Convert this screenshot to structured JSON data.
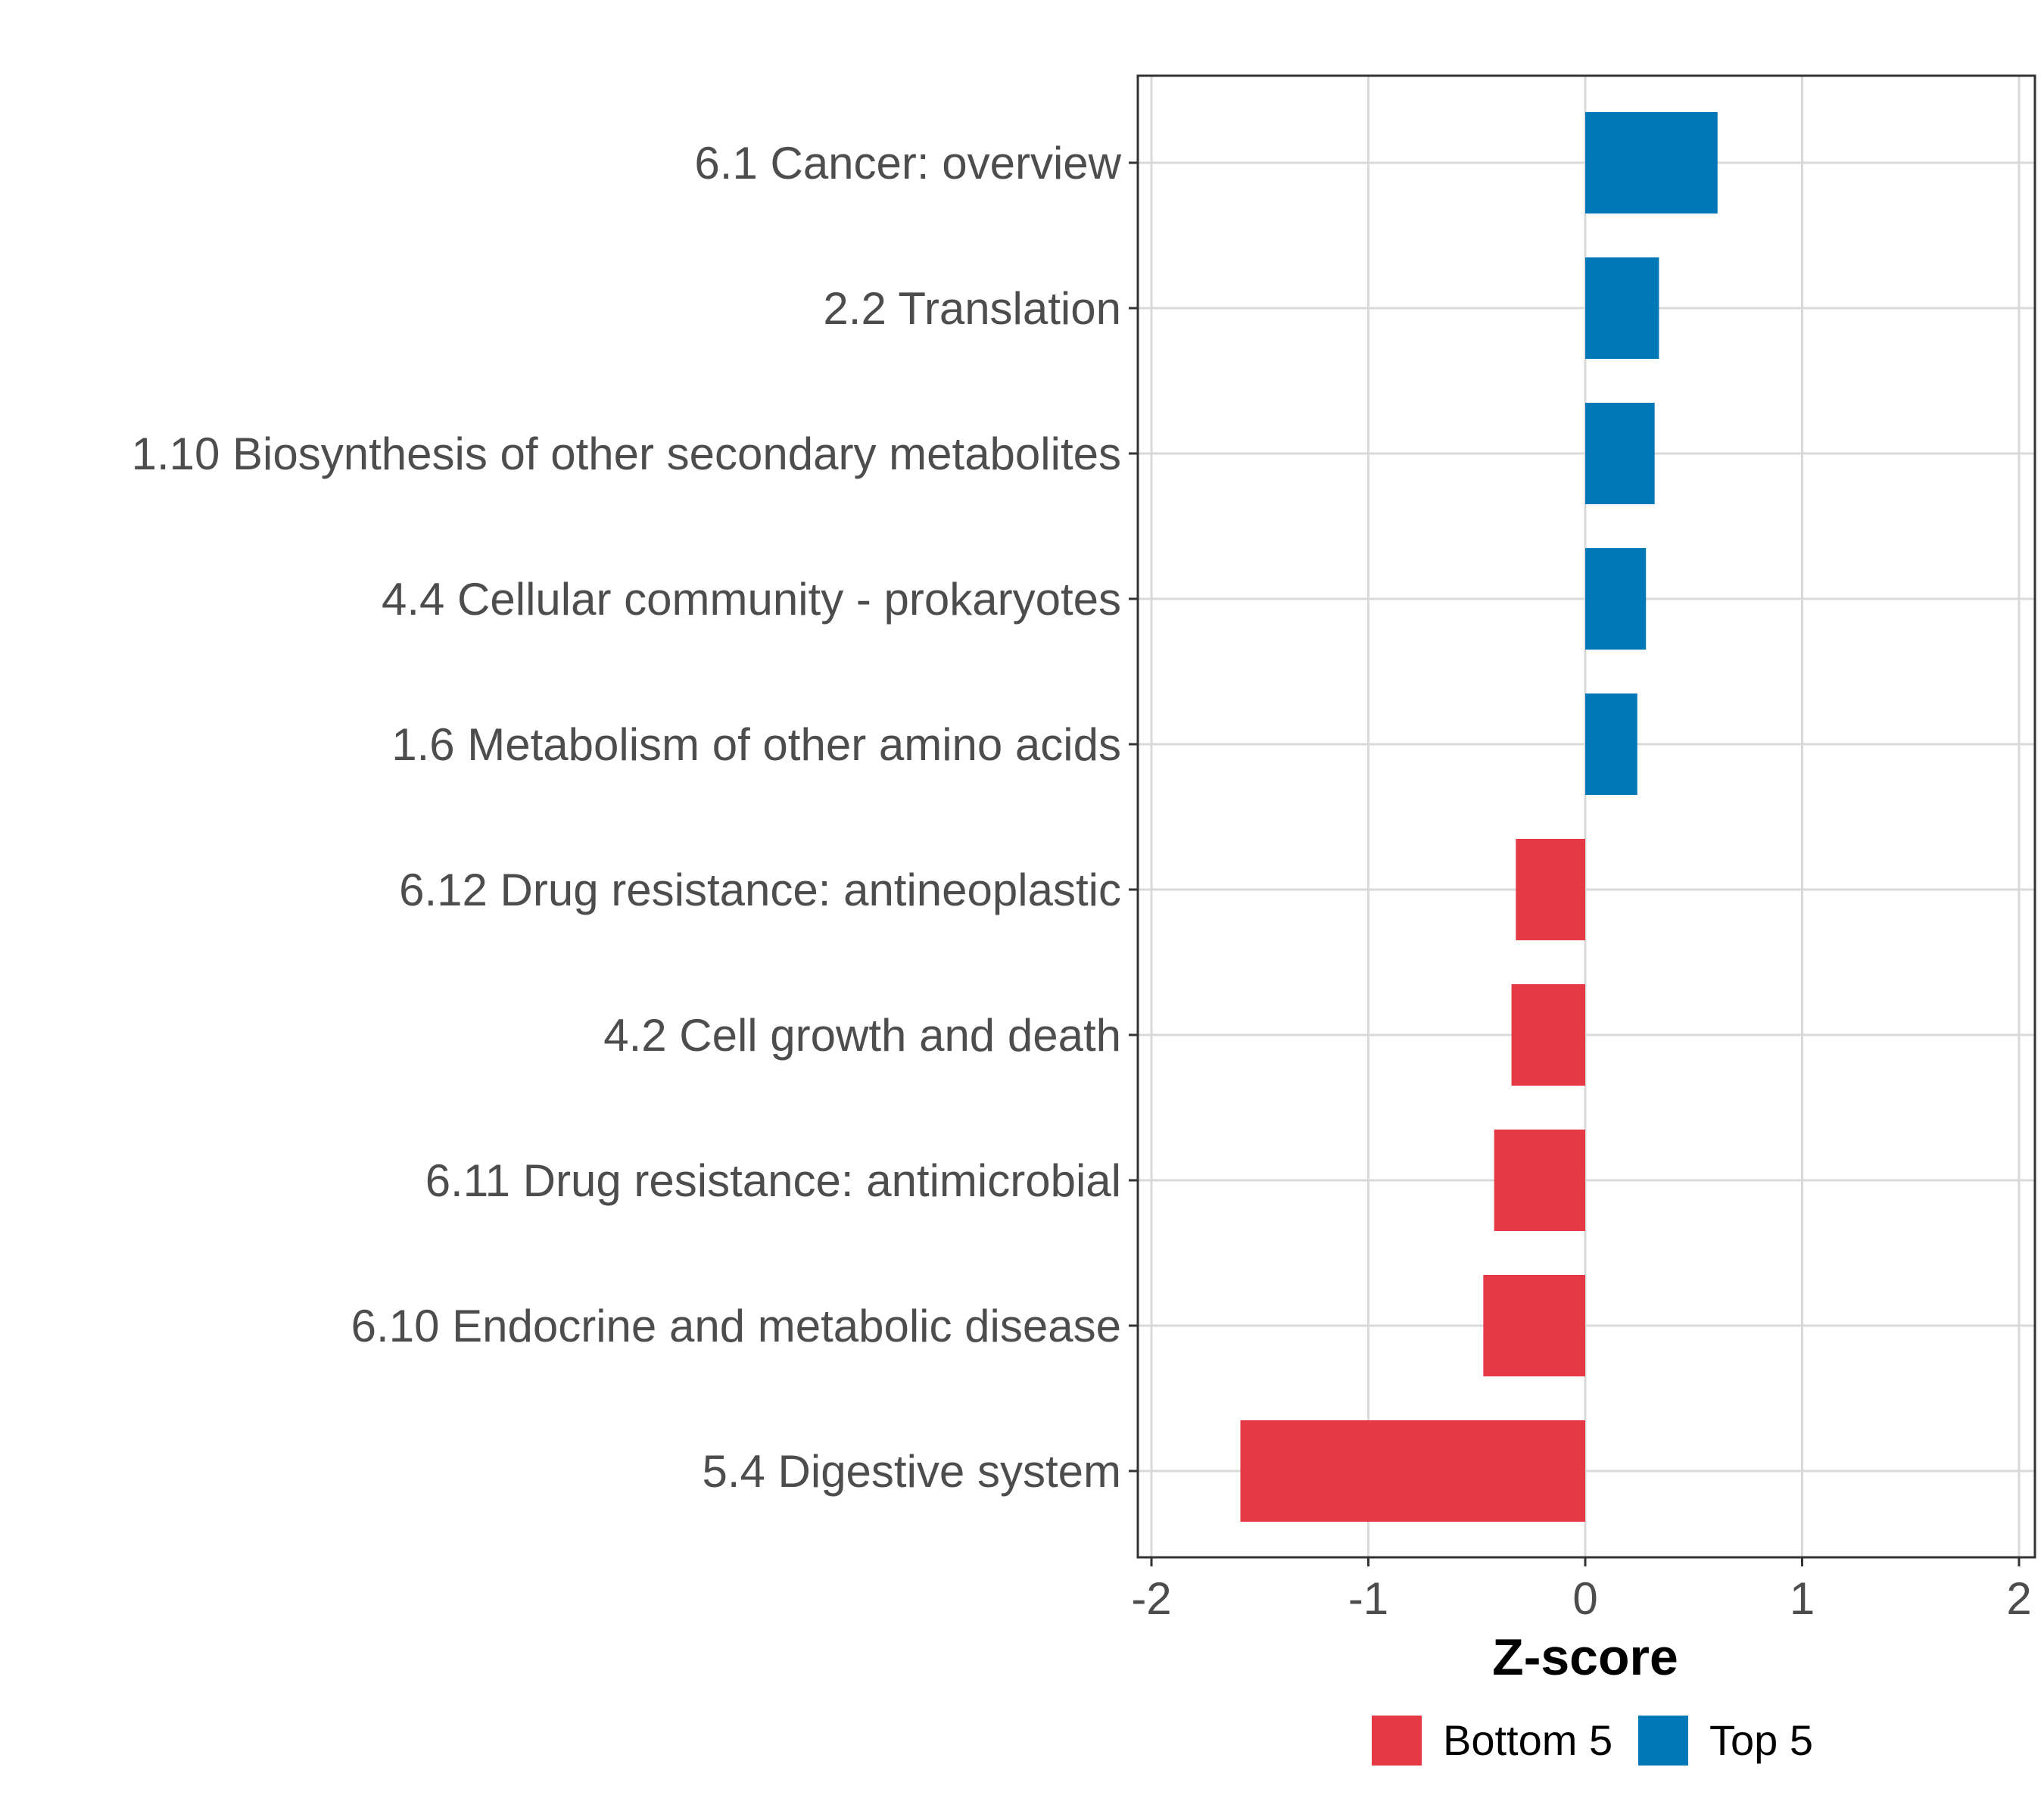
{
  "chart_data": {
    "type": "bar",
    "orientation": "horizontal",
    "title": "",
    "xlabel": "Z-score",
    "ylabel": "",
    "xlim": [
      -2,
      2
    ],
    "xticks": [
      -2,
      -1,
      0,
      1,
      2
    ],
    "xtick_labels": [
      "-2",
      "-1",
      "0",
      "1",
      "2"
    ],
    "grid": true,
    "legend_position": "bottom",
    "colors": {
      "Bottom 5": "#e63946",
      "Top 5": "#0077b6",
      "grid": "#d9d9d9",
      "panel_border": "#333333"
    },
    "series": [
      {
        "name": "Bottom 5",
        "color": "#e63946"
      },
      {
        "name": "Top 5",
        "color": "#0077b6"
      }
    ],
    "categories": [
      "6.1 Cancer: overview",
      "2.2 Translation",
      "1.10 Biosynthesis of other secondary metabolites",
      "4.4 Cellular community - prokaryotes",
      "1.6 Metabolism of other amino acids",
      "6.12 Drug resistance: antineoplastic",
      "4.2 Cell growth and death",
      "6.11 Drug resistance: antimicrobial",
      "6.10 Endocrine and metabolic disease",
      "5.4 Digestive system"
    ],
    "values": [
      0.61,
      0.34,
      0.32,
      0.28,
      0.24,
      -0.32,
      -0.34,
      -0.42,
      -0.47,
      -1.59
    ],
    "groups": [
      "Top 5",
      "Top 5",
      "Top 5",
      "Top 5",
      "Top 5",
      "Bottom 5",
      "Bottom 5",
      "Bottom 5",
      "Bottom 5",
      "Bottom 5"
    ]
  }
}
